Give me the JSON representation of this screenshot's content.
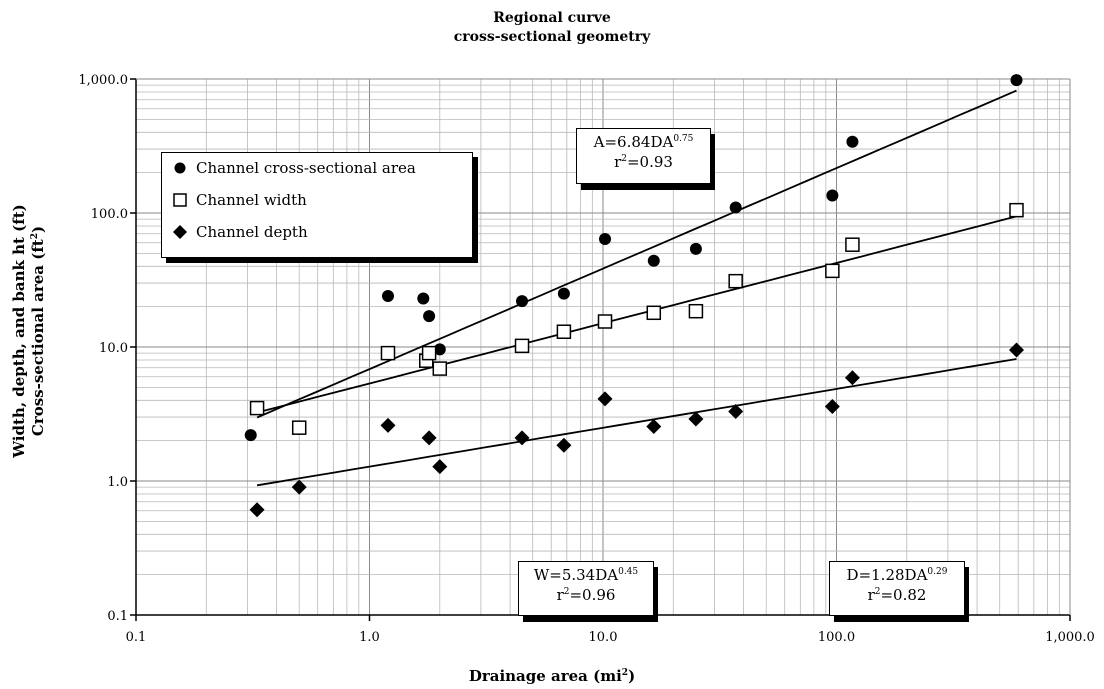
{
  "title_line1": "Regional curve",
  "title_line2": "cross-sectional geometry",
  "ylabel_line1": "Width, depth, and bank ht (ft)",
  "ylabel_line2_main": "Cross-sectional area (ft",
  "ylabel_line2_sup": "2",
  "ylabel_line2_end": ")",
  "xlabel_main": "Drainage area (mi",
  "xlabel_sup": "2",
  "xlabel_end": ")",
  "legend": [
    {
      "label": "Channel cross-sectional area",
      "marker": "filled-circle"
    },
    {
      "label": "Channel width",
      "marker": "open-square"
    },
    {
      "label": "Channel depth",
      "marker": "filled-diamond"
    }
  ],
  "equations": {
    "area": {
      "main": "A=6.84DA",
      "exp": "0.75",
      "r2_pre": "r",
      "r2_sup": "2",
      "r2_val": "=0.93"
    },
    "width": {
      "main": "W=5.34DA",
      "exp": "0.45",
      "r2_pre": "r",
      "r2_sup": "2",
      "r2_val": "=0.96"
    },
    "depth": {
      "main": "D=1.28DA",
      "exp": "0.29",
      "r2_pre": "r",
      "r2_sup": "2",
      "r2_val": "=0.82"
    }
  },
  "chart_data": {
    "type": "scatter",
    "xscale": "log",
    "yscale": "log",
    "xlim": [
      0.1,
      1000
    ],
    "ylim": [
      0.1,
      1000
    ],
    "xticks": [
      "0.1",
      "1.0",
      "10.0",
      "100.0",
      "1,000.0"
    ],
    "yticks": [
      "0.1",
      "1.0",
      "10.0",
      "100.0",
      "1,000.0"
    ],
    "grid": true,
    "legend_position": "top-left",
    "series": [
      {
        "name": "Channel cross-sectional area",
        "marker": "filled-circle",
        "points": [
          [
            0.31,
            2.2
          ],
          [
            1.2,
            24
          ],
          [
            1.7,
            23
          ],
          [
            1.8,
            17
          ],
          [
            2.0,
            9.6
          ],
          [
            4.5,
            22
          ],
          [
            6.8,
            25
          ],
          [
            10.2,
            64
          ],
          [
            16.5,
            44
          ],
          [
            25,
            54
          ],
          [
            37,
            110
          ],
          [
            96,
            135
          ],
          [
            117,
            340
          ],
          [
            590,
            980
          ]
        ]
      },
      {
        "name": "Channel width",
        "marker": "open-square",
        "points": [
          [
            0.33,
            3.5
          ],
          [
            0.5,
            2.5
          ],
          [
            1.2,
            9
          ],
          [
            1.75,
            7.9
          ],
          [
            1.8,
            9
          ],
          [
            2.0,
            6.9
          ],
          [
            4.5,
            10.2
          ],
          [
            6.8,
            13
          ],
          [
            10.2,
            15.5
          ],
          [
            16.5,
            18
          ],
          [
            25,
            18.5
          ],
          [
            37,
            31
          ],
          [
            96,
            37
          ],
          [
            117,
            58
          ],
          [
            590,
            105
          ]
        ]
      },
      {
        "name": "Channel depth",
        "marker": "filled-diamond",
        "points": [
          [
            0.33,
            0.61
          ],
          [
            0.5,
            0.9
          ],
          [
            1.2,
            2.6
          ],
          [
            1.8,
            2.1
          ],
          [
            2.0,
            1.28
          ],
          [
            4.5,
            2.1
          ],
          [
            6.8,
            1.85
          ],
          [
            10.2,
            4.1
          ],
          [
            16.5,
            2.55
          ],
          [
            25,
            2.9
          ],
          [
            37,
            3.3
          ],
          [
            96,
            3.6
          ],
          [
            117,
            5.9
          ],
          [
            590,
            9.5
          ]
        ]
      }
    ],
    "trendlines": [
      {
        "series": "Channel cross-sectional area",
        "coef": 6.84,
        "exp": 0.75,
        "x_range": [
          0.33,
          590
        ]
      },
      {
        "series": "Channel width",
        "coef": 5.34,
        "exp": 0.45,
        "x_range": [
          0.33,
          590
        ]
      },
      {
        "series": "Channel depth",
        "coef": 1.28,
        "exp": 0.29,
        "x_range": [
          0.33,
          590
        ]
      }
    ]
  }
}
